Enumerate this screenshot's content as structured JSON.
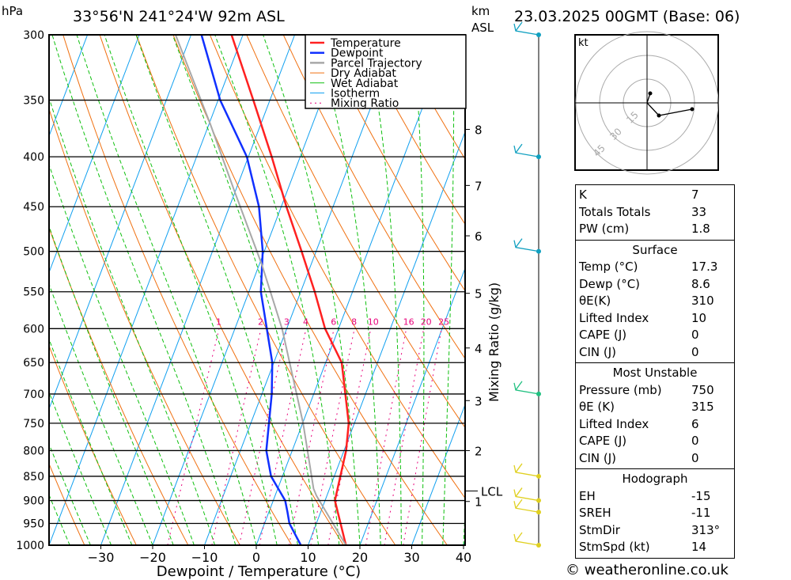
{
  "header": {
    "pressure_unit": "hPa",
    "location": "33°56'N 241°24'W 92m ASL",
    "km_unit": "km",
    "asl": "ASL",
    "datetime": "23.03.2025 00GMT (Base: 06)"
  },
  "colors": {
    "temperature": "#ff2020",
    "dewpoint": "#1030ff",
    "parcel": "#a8a8a8",
    "dry_adiabat": "#f07010",
    "wet_adiabat": "#10c010",
    "isotherm": "#10a0f0",
    "mixing_ratio": "#e8007a"
  },
  "chart_data": {
    "type": "line",
    "title": "Skew-T log-P diagram",
    "xlabel": "Dewpoint / Temperature (°C)",
    "ylabel": "hPa",
    "right_label": "Mixing Ratio (g/kg)",
    "xlim": [
      -40,
      40
    ],
    "ylim": [
      1000,
      300
    ],
    "x_ticks": [
      -30,
      -20,
      -10,
      0,
      10,
      20,
      30,
      40
    ],
    "pressure_ticks": [
      300,
      350,
      400,
      450,
      500,
      550,
      600,
      650,
      700,
      750,
      800,
      850,
      900,
      950,
      1000
    ],
    "km_ticks": [
      {
        "km": "8",
        "p": 375
      },
      {
        "km": "7",
        "p": 428
      },
      {
        "km": "6",
        "p": 482
      },
      {
        "km": "5",
        "p": 552
      },
      {
        "km": "4",
        "p": 628
      },
      {
        "km": "3",
        "p": 711
      },
      {
        "km": "2",
        "p": 800
      },
      {
        "km": "1",
        "p": 902
      }
    ],
    "lcl": {
      "label": "LCL",
      "p": 880
    },
    "mixing_ratio_labels": [
      1,
      2,
      3,
      4,
      6,
      8,
      10,
      16,
      20,
      25
    ],
    "legend": [
      "Temperature",
      "Dewpoint",
      "Parcel Trajectory",
      "Dry Adiabat",
      "Wet Adiabat",
      "Isotherm",
      "Mixing Ratio"
    ],
    "legend_position": "top-right",
    "series": [
      {
        "name": "Temperature",
        "p": [
          1000,
          900,
          800,
          750,
          650,
          600,
          550,
          500,
          450,
          400,
          350,
          300
        ],
        "t": [
          17.3,
          11.9,
          10.4,
          8.9,
          3.1,
          -2.6,
          -7.3,
          -12.8,
          -19,
          -25.5,
          -33.2,
          -42.2
        ]
      },
      {
        "name": "Dewpoint",
        "p": [
          1000,
          950,
          925,
          900,
          850,
          800,
          700,
          650,
          550,
          500,
          450,
          400,
          350,
          300
        ],
        "t": [
          8.6,
          4.8,
          3.6,
          2.3,
          -2.2,
          -5,
          -8.1,
          -10.3,
          -17.7,
          -20.3,
          -24.3,
          -30.3,
          -39.6,
          -48
        ]
      },
      {
        "name": "Parcel Trajectory",
        "p": [
          1000,
          890,
          875,
          750,
          600,
          515,
          435,
          370,
          300
        ],
        "t": [
          17.3,
          8,
          6.9,
          0.1,
          -10.9,
          -19.6,
          -30,
          -39.8,
          -53
        ]
      }
    ]
  },
  "hodograph": {
    "unit": "kt",
    "rings": [
      "15",
      "30",
      "45"
    ],
    "points": [
      [
        2,
        6
      ],
      [
        0,
        0
      ],
      [
        7.5,
        -8
      ],
      [
        28.5,
        -4
      ]
    ]
  },
  "wind_levels": [
    300,
    400,
    500,
    700,
    850,
    900,
    925,
    1000
  ],
  "indices": {
    "top": [
      {
        "k": "K",
        "v": "7"
      },
      {
        "k": "Totals Totals",
        "v": "33"
      },
      {
        "k": "PW (cm)",
        "v": "1.8"
      }
    ],
    "surface": {
      "title": "Surface",
      "rows": [
        {
          "k": "Temp (°C)",
          "v": "17.3"
        },
        {
          "k": "Dewp (°C)",
          "v": "8.6"
        },
        {
          "k": "θE(K)",
          "v": "310"
        },
        {
          "k": "Lifted Index",
          "v": "10"
        },
        {
          "k": "CAPE (J)",
          "v": "0"
        },
        {
          "k": "CIN (J)",
          "v": "0"
        }
      ]
    },
    "most_unstable": {
      "title": "Most Unstable",
      "rows": [
        {
          "k": "Pressure (mb)",
          "v": "750"
        },
        {
          "k": "θE (K)",
          "v": "315"
        },
        {
          "k": "Lifted Index",
          "v": "6"
        },
        {
          "k": "CAPE (J)",
          "v": "0"
        },
        {
          "k": "CIN (J)",
          "v": "0"
        }
      ]
    },
    "hodograph": {
      "title": "Hodograph",
      "rows": [
        {
          "k": "EH",
          "v": "-15"
        },
        {
          "k": "SREH",
          "v": "-11"
        },
        {
          "k": "StmDir",
          "v": "313°"
        },
        {
          "k": "StmSpd (kt)",
          "v": "14"
        }
      ]
    }
  },
  "footer": "© weatheronline.co.uk"
}
